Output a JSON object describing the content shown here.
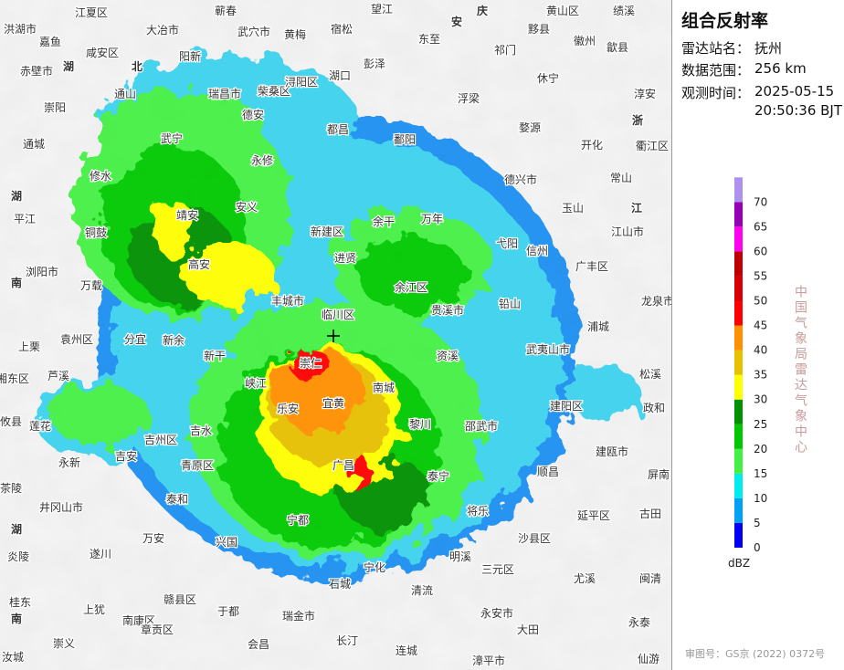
{
  "panel": {
    "title": "组合反射率",
    "station_label": "雷达站名：",
    "station": "抚州",
    "range_label": "数据范围：",
    "range": "256 km",
    "time_label": "观测时间：",
    "date": "2025-05-15",
    "time": "20:50:36 BJT"
  },
  "legend": {
    "unit": "dBZ",
    "levels": [
      {
        "value": 0,
        "color": "#0000f6"
      },
      {
        "value": 5,
        "color": "#01a0f6"
      },
      {
        "value": 10,
        "color": "#00ecec"
      },
      {
        "value": 15,
        "color": "#44f044"
      },
      {
        "value": 20,
        "color": "#00c800"
      },
      {
        "value": 25,
        "color": "#019000"
      },
      {
        "value": 30,
        "color": "#ffff00"
      },
      {
        "value": 35,
        "color": "#e7c000"
      },
      {
        "value": 40,
        "color": "#ff9000"
      },
      {
        "value": 45,
        "color": "#ff0000"
      },
      {
        "value": 50,
        "color": "#d60000"
      },
      {
        "value": 55,
        "color": "#c00000"
      },
      {
        "value": 60,
        "color": "#ff00f0"
      },
      {
        "value": 65,
        "color": "#9600b4"
      },
      {
        "value": 70,
        "color": "#ad90f0"
      }
    ]
  },
  "credit": "中国气象局雷达气象中心",
  "approval": "审图号：GS京 (2022) 0372号",
  "map": {
    "places": [
      "江夏区",
      "大冶市",
      "蕲春",
      "武穴市",
      "黄梅",
      "宿松",
      "望江",
      "安",
      "庆",
      "黄山区",
      "绩溪",
      "洪湖市",
      "嘉鱼",
      "咸安区",
      "阳新",
      "彭泽",
      "湖口",
      "东至",
      "祁门",
      "黟县",
      "徽州",
      "歙县",
      "赤壁市",
      "湖",
      "北",
      "瑞昌市",
      "柴桑区",
      "浔阳区",
      "休宁",
      "淳安",
      "浮梁",
      "通山",
      "德安",
      "都昌",
      "婺源",
      "崇阳",
      "开化",
      "鄱阳",
      "浙",
      "通城",
      "武宁",
      "永修",
      "常山",
      "衢江区",
      "德兴市",
      "修水",
      "湖",
      "安义",
      "余干",
      "万年",
      "玉山",
      "江",
      "平江",
      "靖安",
      "江山市",
      "铜鼓",
      "新建区",
      "进贤",
      "弋阳",
      "信州",
      "广丰区",
      "浏阳市",
      "万载",
      "高安",
      "南",
      "丰城市",
      "余江区",
      "贵溪市",
      "铅山",
      "临川区",
      "浦城",
      "龙泉市",
      "袁州区",
      "分宜",
      "新余",
      "上栗",
      "新干",
      "崇仁",
      "资溪",
      "武夷山市",
      "松溪",
      "湘东区",
      "芦溪",
      "南城",
      "宜黄",
      "峡江",
      "建阳区",
      "政和",
      "莲花",
      "吉水",
      "乐安",
      "黎川",
      "邵武市",
      "攸县",
      "吉州区",
      "建瓯市",
      "永新",
      "吉安",
      "青原区",
      "广昌",
      "泰宁",
      "顺昌",
      "屏南",
      "茶陵",
      "井冈山市",
      "泰和",
      "宁都",
      "将乐",
      "延平区",
      "古田",
      "湖",
      "万安",
      "兴国",
      "石城",
      "宁化",
      "明溪",
      "沙县区",
      "三元区",
      "尤溪",
      "闽清",
      "炎陵",
      "遂川",
      "赣县区",
      "南康区",
      "上犹",
      "于都",
      "瑞金市",
      "清流",
      "永安市",
      "桂东",
      "南",
      "章贡区",
      "大田",
      "永泰",
      "会昌",
      "长汀",
      "连城",
      "漳平市",
      "仙游",
      "崇义",
      "汝城"
    ]
  }
}
